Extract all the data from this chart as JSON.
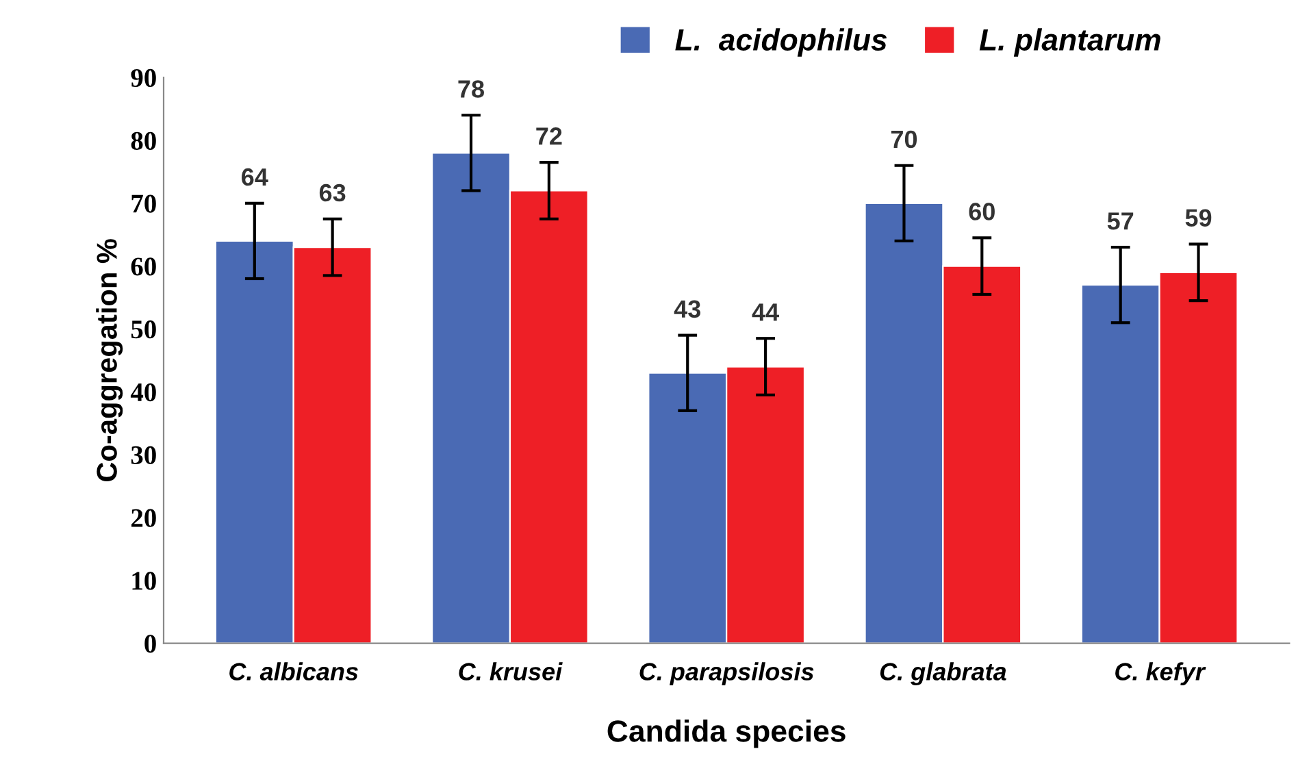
{
  "chart_data": {
    "type": "bar",
    "xlabel": "Candida species",
    "ylabel": "Co-aggregation %",
    "categories": [
      "C. albicans",
      "C. krusei",
      "C. parapsilosis",
      "C. glabrata",
      "C. kefyr"
    ],
    "series": [
      {
        "name": "L.  acidophilus",
        "color": "#4a6ab4",
        "values": [
          64,
          78,
          43,
          70,
          57
        ],
        "errors": [
          6,
          6,
          6,
          6,
          6
        ]
      },
      {
        "name": "L. plantarum",
        "color": "#ee1f26",
        "values": [
          63,
          72,
          44,
          60,
          59
        ],
        "errors": [
          4.5,
          4.5,
          4.5,
          4.5,
          4.5
        ]
      }
    ],
    "ylim": [
      0,
      90
    ],
    "yticks": [
      0,
      10,
      20,
      30,
      40,
      50,
      60,
      70,
      80,
      90
    ],
    "data_labels": true,
    "grid": false,
    "legend": "top right"
  }
}
